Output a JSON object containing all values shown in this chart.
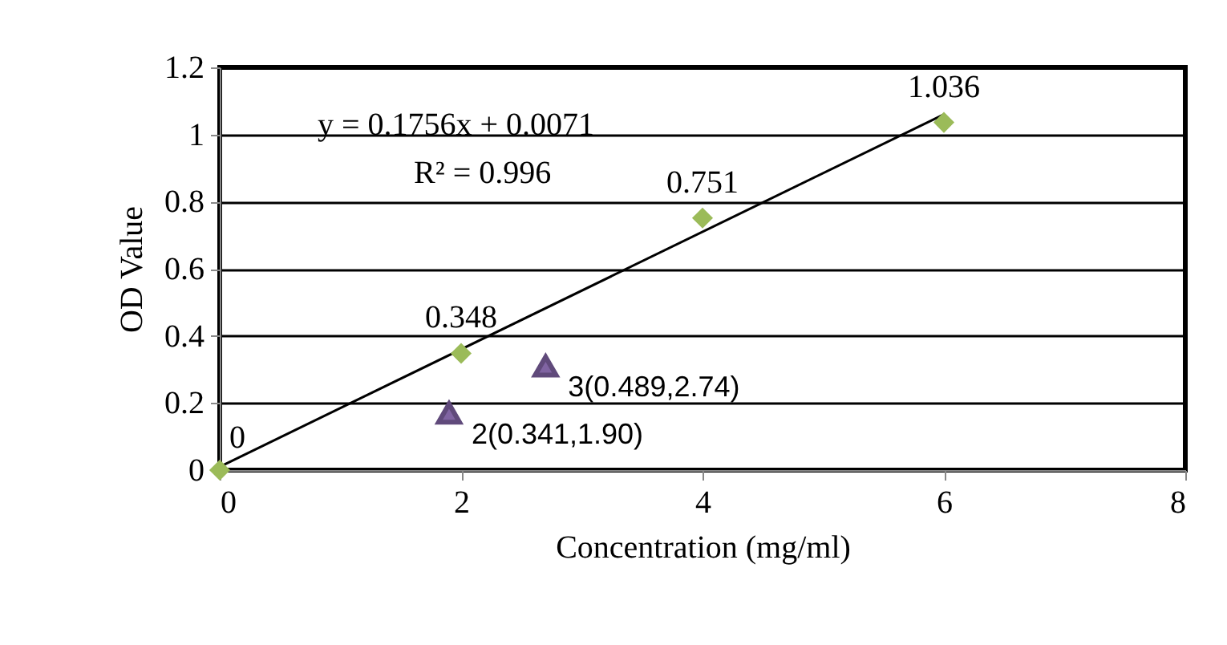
{
  "chart_data": {
    "type": "scatter",
    "xlabel": "Concentration (mg/ml)",
    "ylabel": "OD Value",
    "xlim": [
      0,
      8
    ],
    "xticks": [
      0,
      2,
      4,
      6,
      8
    ],
    "ylim": [
      0,
      1.2
    ],
    "yticks": [
      0,
      0.2,
      0.4,
      0.6,
      0.8,
      1,
      1.2
    ],
    "grid": "y",
    "series": [
      {
        "type": "line",
        "x": [
          0,
          6
        ],
        "values": [
          0.01,
          1.06
        ],
        "color": "#000000",
        "marker": "none",
        "line_style": "solid"
      },
      {
        "x": [
          0,
          2,
          4,
          6
        ],
        "values": [
          0,
          0.348,
          0.751,
          1.036
        ],
        "color": "#9bbb59",
        "marker": "diamond",
        "value_labels": [
          "0",
          "0.348",
          "0.751",
          "1.036"
        ]
      },
      {
        "x": [
          1.9,
          2.7
        ],
        "values": [
          0.17,
          0.31
        ],
        "color": "#604a7b",
        "marker": "triangle",
        "value_labels": [
          "2(0.341,1.90)",
          "3(0.489,2.74)"
        ]
      }
    ],
    "annotations": [
      "y = 0.1756x + 0.0071",
      "R² = 0.996"
    ]
  }
}
